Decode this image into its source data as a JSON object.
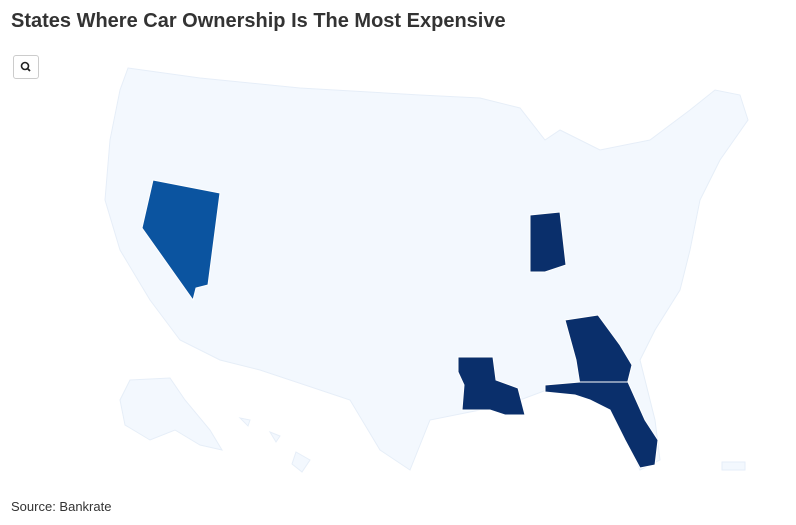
{
  "header": {
    "title": "States Where Car Ownership Is The Most Expensive"
  },
  "footer": {
    "source": "Source: Bankrate"
  }
}
